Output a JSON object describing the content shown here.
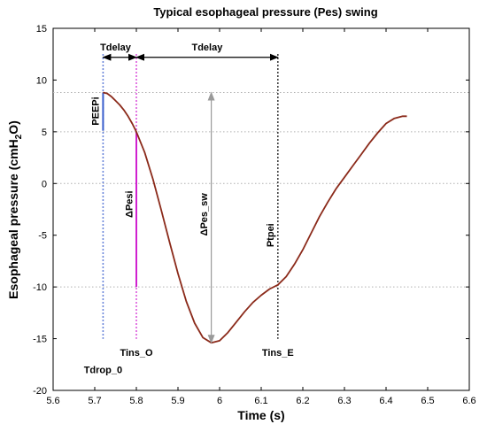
{
  "chart_data": {
    "type": "line",
    "title": "Typical esophageal pressure (Pes) swing",
    "xlabel": "Time (s)",
    "ylabel": "Esophageal pressure (cmH",
    "ylabel_sub": "2",
    "ylabel_end": "O)",
    "xlim": [
      5.6,
      6.6
    ],
    "ylim": [
      -20,
      15
    ],
    "xticks": [
      5.6,
      5.7,
      5.8,
      5.9,
      6.0,
      6.1,
      6.2,
      6.3,
      6.4,
      6.5,
      6.6
    ],
    "xtick_labels": [
      "5.6",
      "5.7",
      "5.8",
      "5.9",
      "6",
      "6.1",
      "6.2",
      "6.3",
      "6.4",
      "6.5",
      "6.6"
    ],
    "yticks": [
      15,
      10,
      5,
      0,
      -5,
      -10,
      -15,
      -20
    ],
    "ytick_labels": [
      "15",
      "10",
      "5",
      "0",
      "-5",
      "-10",
      "-15",
      "-20"
    ],
    "grid": false,
    "series": [
      {
        "color": "#8b2a1a",
        "x": [
          5.72,
          5.73,
          5.74,
          5.75,
          5.76,
          5.77,
          5.78,
          5.79,
          5.8,
          5.82,
          5.84,
          5.86,
          5.88,
          5.9,
          5.92,
          5.94,
          5.96,
          5.98,
          6.0,
          6.02,
          6.04,
          6.06,
          6.08,
          6.1,
          6.12,
          6.14,
          6.16,
          6.18,
          6.2,
          6.22,
          6.24,
          6.26,
          6.28,
          6.3,
          6.32,
          6.34,
          6.36,
          6.38,
          6.4,
          6.42,
          6.44,
          6.45
        ],
        "y": [
          8.8,
          8.7,
          8.4,
          8.0,
          7.6,
          7.1,
          6.5,
          5.8,
          5.0,
          3.0,
          0.4,
          -2.6,
          -5.7,
          -8.7,
          -11.4,
          -13.5,
          -14.9,
          -15.4,
          -15.2,
          -14.4,
          -13.4,
          -12.4,
          -11.5,
          -10.8,
          -10.2,
          -9.8,
          -9.0,
          -7.8,
          -6.4,
          -4.8,
          -3.2,
          -1.8,
          -0.5,
          0.6,
          1.7,
          2.8,
          3.9,
          4.9,
          5.8,
          6.3,
          6.5,
          6.5
        ]
      }
    ],
    "reference_lines": [
      {
        "orientation": "h",
        "y": 8.8,
        "color": "#b0b0b0",
        "style": "dotted"
      },
      {
        "orientation": "h",
        "y": 5.0,
        "color": "#b0b0b0",
        "style": "dotted"
      },
      {
        "orientation": "h",
        "y": 0,
        "color": "#b0b0b0",
        "style": "dotted"
      },
      {
        "orientation": "h",
        "y": -10,
        "color": "#b0b0b0",
        "style": "dotted"
      },
      {
        "orientation": "v",
        "x": 5.72,
        "y0": -15,
        "y1": 12.5,
        "color": "#3a5fcd",
        "style": "dotted"
      },
      {
        "orientation": "v",
        "x": 5.8,
        "y0": -15,
        "y1": 12.5,
        "color": "#d020d0",
        "style": "dotted"
      },
      {
        "orientation": "v",
        "x": 6.14,
        "y0": -15,
        "y1": 12.5,
        "color": "#000000",
        "style": "dotted"
      }
    ],
    "segments": [
      {
        "x0": 5.72,
        "y0": 8.8,
        "x1": 5.72,
        "y1": 5.1,
        "color": "#3a5fcd",
        "width": 2
      },
      {
        "x0": 5.8,
        "y0": 5.0,
        "x1": 5.8,
        "y1": -10.0,
        "color": "#d020d0",
        "width": 2
      }
    ],
    "arrows": [
      {
        "x0": 5.72,
        "y0": 12.2,
        "x1": 5.8,
        "y1": 12.2,
        "color": "#000000",
        "heads": "both",
        "label": "Tdelay",
        "label_x": 5.75,
        "label_y": 12.7
      },
      {
        "x0": 5.8,
        "y0": 12.2,
        "x1": 6.14,
        "y1": 12.2,
        "color": "#000000",
        "heads": "both",
        "label": "Tdelay",
        "label_x": 5.97,
        "label_y": 12.7
      },
      {
        "x0": 5.98,
        "y0": 8.8,
        "x1": 5.98,
        "y1": -15.4,
        "color": "#9a9a9a",
        "heads": "both"
      }
    ],
    "annotations": [
      {
        "text": "PEEPi",
        "x": 5.71,
        "y": 7.0,
        "rotate": -90
      },
      {
        "text": "ΔPesi",
        "x": 5.79,
        "y": -2.0,
        "rotate": -90
      },
      {
        "text": "ΔPes_sw",
        "x": 5.97,
        "y": -3.0,
        "rotate": -90
      },
      {
        "text": "Ptpei",
        "x": 6.13,
        "y": -5.0,
        "rotate": -90
      },
      {
        "text": "Tins_O",
        "x": 5.8,
        "y": -16.3
      },
      {
        "text": "Tins_E",
        "x": 6.14,
        "y": -16.3
      },
      {
        "text": "Tdrop_0",
        "x": 5.72,
        "y": -18.0
      }
    ]
  }
}
